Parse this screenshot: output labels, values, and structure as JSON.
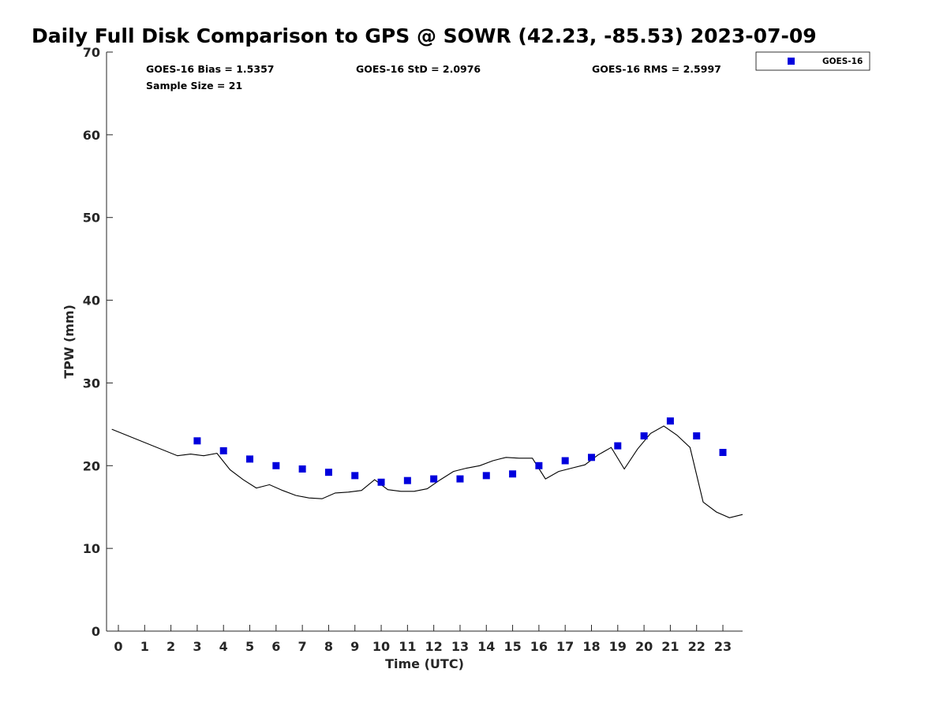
{
  "chart_data": {
    "type": "scatter",
    "title": "Daily Full Disk Comparison to GPS @ SOWR (42.23, -85.53) 2023-07-09",
    "xlabel": "Time (UTC)",
    "ylabel": "TPW (mm)",
    "xlim": [
      -0.45,
      23.75
    ],
    "ylim": [
      0,
      70
    ],
    "xticks": [
      0,
      1,
      2,
      3,
      4,
      5,
      6,
      7,
      8,
      9,
      10,
      11,
      12,
      13,
      14,
      15,
      16,
      17,
      18,
      19,
      20,
      21,
      22,
      23
    ],
    "yticks": [
      0,
      10,
      20,
      30,
      40,
      50,
      60,
      70
    ],
    "grid": false,
    "legend_position": "top-right",
    "stats": {
      "bias": "GOES-16 Bias = 1.5357",
      "std": "GOES-16 StD = 2.0976",
      "rms": "GOES-16 RMS = 2.5997",
      "sample": "Sample Size = 21"
    },
    "series": [
      {
        "name": "GOES-16",
        "kind": "scatter",
        "color": "#0000dd",
        "marker": "square",
        "points": [
          [
            3,
            23.0
          ],
          [
            4,
            21.8
          ],
          [
            5,
            20.8
          ],
          [
            6,
            20.0
          ],
          [
            7,
            19.6
          ],
          [
            8,
            19.2
          ],
          [
            9,
            18.8
          ],
          [
            10,
            18.0
          ],
          [
            11,
            18.2
          ],
          [
            12,
            18.4
          ],
          [
            13,
            18.4
          ],
          [
            14,
            18.8
          ],
          [
            15,
            19.0
          ],
          [
            16,
            20.0
          ],
          [
            17,
            20.6
          ],
          [
            18,
            21.0
          ],
          [
            19,
            22.4
          ],
          [
            20,
            23.6
          ],
          [
            21,
            25.4
          ],
          [
            22,
            23.6
          ],
          [
            23,
            21.6
          ]
        ]
      },
      {
        "kind": "line",
        "color": "#000000",
        "points": [
          [
            -0.25,
            24.4
          ],
          [
            2.25,
            21.2
          ],
          [
            2.75,
            21.4
          ],
          [
            3.25,
            21.2
          ],
          [
            3.75,
            21.5
          ],
          [
            4.25,
            19.5
          ],
          [
            4.75,
            18.3
          ],
          [
            5.25,
            17.3
          ],
          [
            5.75,
            17.7
          ],
          [
            6.25,
            17.0
          ],
          [
            6.75,
            16.4
          ],
          [
            7.25,
            16.1
          ],
          [
            7.75,
            16.0
          ],
          [
            8.25,
            16.7
          ],
          [
            8.75,
            16.8
          ],
          [
            9.25,
            17.0
          ],
          [
            9.75,
            18.3
          ],
          [
            10.25,
            17.1
          ],
          [
            10.75,
            16.9
          ],
          [
            11.25,
            16.9
          ],
          [
            11.75,
            17.2
          ],
          [
            12.25,
            18.3
          ],
          [
            12.75,
            19.3
          ],
          [
            13.25,
            19.7
          ],
          [
            13.75,
            20.0
          ],
          [
            14.25,
            20.6
          ],
          [
            14.75,
            21.0
          ],
          [
            15.25,
            20.9
          ],
          [
            15.75,
            20.9
          ],
          [
            16.25,
            18.4
          ],
          [
            16.75,
            19.3
          ],
          [
            17.25,
            19.7
          ],
          [
            17.75,
            20.1
          ],
          [
            18.25,
            21.3
          ],
          [
            18.75,
            22.2
          ],
          [
            19.25,
            19.6
          ],
          [
            19.75,
            22.0
          ],
          [
            20.25,
            23.9
          ],
          [
            20.75,
            24.8
          ],
          [
            21.25,
            23.7
          ],
          [
            21.75,
            22.2
          ],
          [
            22.25,
            15.6
          ],
          [
            22.75,
            14.4
          ],
          [
            23.25,
            13.7
          ],
          [
            23.75,
            14.1
          ]
        ]
      }
    ]
  }
}
